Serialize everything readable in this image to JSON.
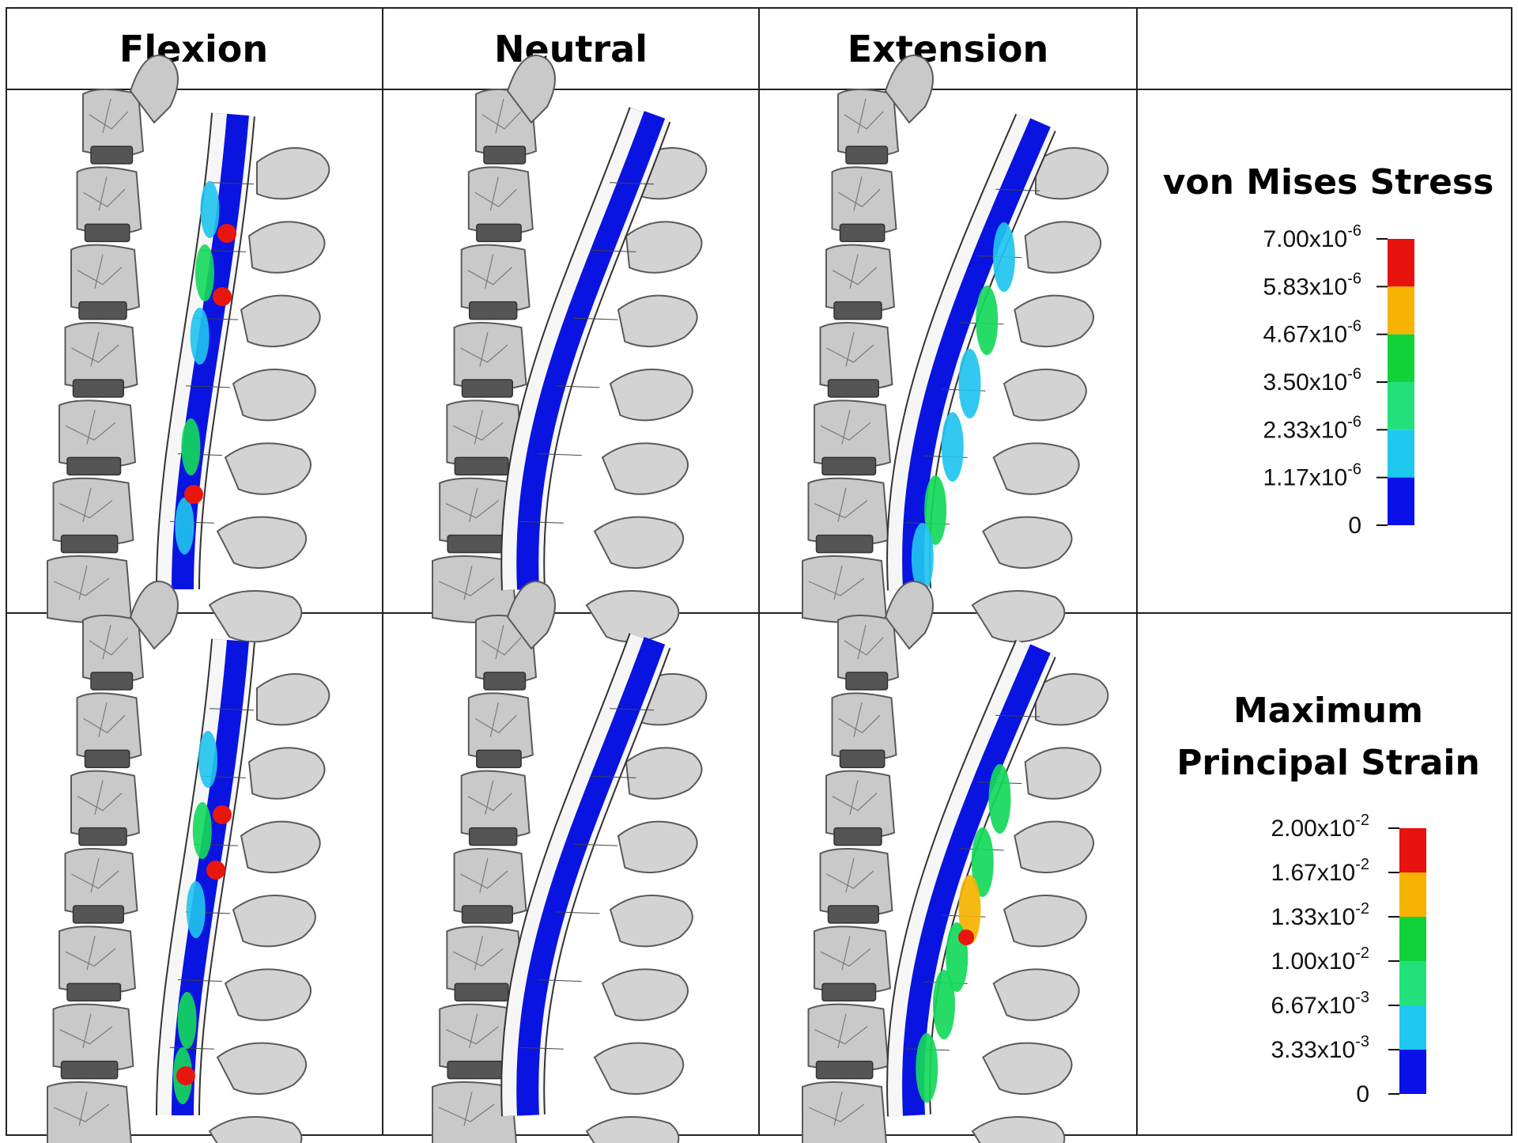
{
  "headers": [
    "Flexion",
    "Neutral",
    "Extension",
    ""
  ],
  "rows": [
    {
      "legend": {
        "title_lines": [
          "von Mises Stress"
        ],
        "ticks": [
          {
            "base": "7.00x10",
            "exp": "-6"
          },
          {
            "base": "5.83x10",
            "exp": "-6"
          },
          {
            "base": "4.67x10",
            "exp": "-6"
          },
          {
            "base": "3.50x10",
            "exp": "-6"
          },
          {
            "base": "2.33x10",
            "exp": "-6"
          },
          {
            "base": "1.17x10",
            "exp": "-6"
          },
          {
            "base": "0",
            "exp": ""
          }
        ]
      }
    },
    {
      "legend": {
        "title_lines": [
          "Maximum",
          "Principal Strain"
        ],
        "ticks": [
          {
            "base": "2.00x10",
            "exp": "-2"
          },
          {
            "base": "1.67x10",
            "exp": "-2"
          },
          {
            "base": "1.33x10",
            "exp": "-2"
          },
          {
            "base": "1.00x10",
            "exp": "-2"
          },
          {
            "base": "6.67x10",
            "exp": "-3"
          },
          {
            "base": "3.33x10",
            "exp": "-3"
          },
          {
            "base": "0",
            "exp": ""
          }
        ]
      }
    }
  ],
  "colorbar_colors": [
    "#e8120c",
    "#f6b400",
    "#12d23a",
    "#22e07a",
    "#1ec8ee",
    "#0a10e8"
  ],
  "spinal_cord_color": "#0a14e0",
  "hotspot_color": "#e8160c"
}
